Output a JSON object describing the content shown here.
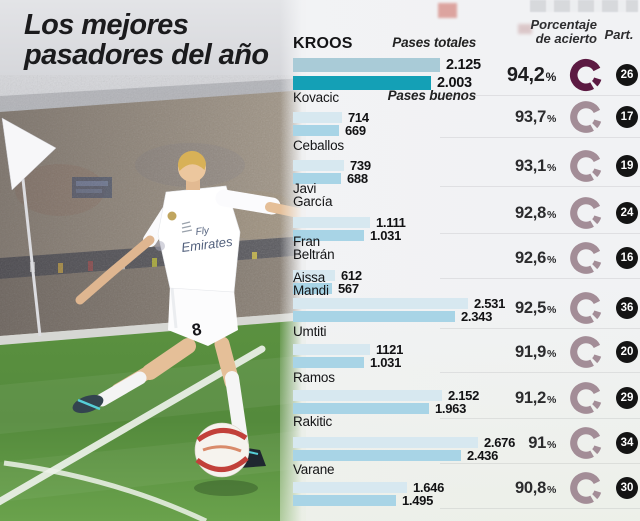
{
  "title": {
    "line1": "Los mejores",
    "line2": "pasadores del año"
  },
  "headers": {
    "porcentaje_line1": "Porcentaje",
    "porcentaje_line2": "de acierto",
    "part": "Part.",
    "pases_totales": "Pases totales",
    "pases_buenos": "Pases buenos",
    "percent_symbol": "%"
  },
  "colors": {
    "bar_totales_highlight": "#a9cbd7",
    "bar_buenos_highlight": "#14a0b6",
    "bar_totales": "#d7e8f0",
    "bar_buenos": "#a8d4e6",
    "donut_highlight": "#5c1a42",
    "donut_normal": "#a38d97",
    "badge_bg": "#141414",
    "badge_text": "#ffffff"
  },
  "chart_data": {
    "type": "bar",
    "orientation": "horizontal",
    "title": "Los mejores pasadores del año",
    "series_labels": [
      "Pases totales",
      "Pases buenos"
    ],
    "value_axis_max": 2676,
    "players": [
      {
        "name_lines": [
          "KROOS"
        ],
        "highlight": true,
        "pases_totales": 2125,
        "pases_buenos": 2003,
        "pases_totales_label": "2.125",
        "pases_buenos_label": "2.003",
        "pct_label": "94,2",
        "part": "26"
      },
      {
        "name_lines": [
          "Kovacic"
        ],
        "highlight": false,
        "pases_totales": 714,
        "pases_buenos": 669,
        "pases_totales_label": "714",
        "pases_buenos_label": "669",
        "pct_label": "93,7",
        "part": "17"
      },
      {
        "name_lines": [
          "Ceballos"
        ],
        "highlight": false,
        "pases_totales": 739,
        "pases_buenos": 688,
        "pases_totales_label": "739",
        "pases_buenos_label": "688",
        "pct_label": "93,1",
        "part": "19"
      },
      {
        "name_lines": [
          "Javi",
          "García"
        ],
        "highlight": false,
        "pases_totales": 1111,
        "pases_buenos": 1031,
        "pases_totales_label": "1.111",
        "pases_buenos_label": "1.031",
        "pct_label": "92,8",
        "part": "24"
      },
      {
        "name_lines": [
          "Fran",
          "Beltrán"
        ],
        "highlight": false,
        "pases_totales": 612,
        "pases_buenos": 567,
        "pases_totales_label": "612",
        "pases_buenos_label": "567",
        "pct_label": "92,6",
        "part": "16"
      },
      {
        "name_lines": [
          "Aissa",
          "Mandi"
        ],
        "highlight": false,
        "pases_totales": 2531,
        "pases_buenos": 2343,
        "pases_totales_label": "2.531",
        "pases_buenos_label": "2.343",
        "pct_label": "92,5",
        "part": "36"
      },
      {
        "name_lines": [
          "Umtiti"
        ],
        "highlight": false,
        "pases_totales": 1121,
        "pases_buenos": 1031,
        "pases_totales_label": "1121",
        "pases_buenos_label": "1.031",
        "pct_label": "91,9",
        "part": "20"
      },
      {
        "name_lines": [
          "Ramos"
        ],
        "highlight": false,
        "pases_totales": 2152,
        "pases_buenos": 1963,
        "pases_totales_label": "2.152",
        "pases_buenos_label": "1.963",
        "pct_label": "91,2",
        "part": "29"
      },
      {
        "name_lines": [
          "Rakitic"
        ],
        "highlight": false,
        "pases_totales": 2676,
        "pases_buenos": 2436,
        "pases_totales_label": "2.676",
        "pases_buenos_label": "2.436",
        "pct_label": "91",
        "part": "34"
      },
      {
        "name_lines": [
          "Varane"
        ],
        "highlight": false,
        "pases_totales": 1646,
        "pases_buenos": 1495,
        "pases_totales_label": "1.646",
        "pases_buenos_label": "1.495",
        "pct_label": "90,8",
        "part": "30"
      }
    ]
  }
}
